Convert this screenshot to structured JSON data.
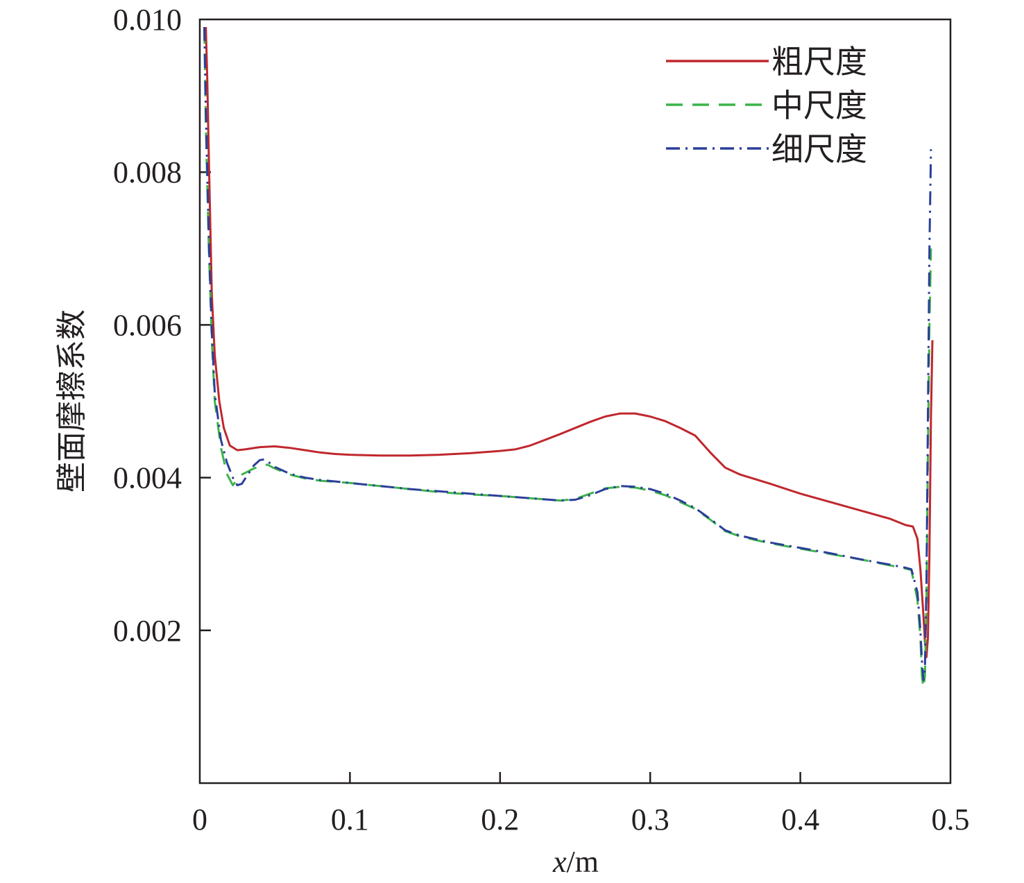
{
  "chart_data": {
    "type": "line",
    "xlabel_var": "x",
    "xlabel_unit": "/m",
    "ylabel": "壁面摩擦系数",
    "xlim": [
      0,
      0.5
    ],
    "ylim": [
      0,
      0.01
    ],
    "xticks": [
      0,
      0.1,
      0.2,
      0.3,
      0.4,
      0.5
    ],
    "xtick_labels": [
      "0",
      "0.1",
      "0.2",
      "0.3",
      "0.4",
      "0.5"
    ],
    "yticks": [
      0.002,
      0.004,
      0.006,
      0.008,
      0.01
    ],
    "ytick_labels": [
      "0.002",
      "0.004",
      "0.006",
      "0.008",
      "0.010"
    ],
    "grid": false,
    "legend_position": "top-right",
    "series": [
      {
        "name": "粗尺度",
        "color": "#c0272d",
        "style": "solid",
        "x": [
          0.004,
          0.005,
          0.006,
          0.008,
          0.01,
          0.013,
          0.016,
          0.02,
          0.025,
          0.03,
          0.04,
          0.05,
          0.06,
          0.07,
          0.08,
          0.09,
          0.1,
          0.12,
          0.14,
          0.16,
          0.18,
          0.2,
          0.21,
          0.22,
          0.24,
          0.26,
          0.27,
          0.28,
          0.29,
          0.3,
          0.31,
          0.32,
          0.33,
          0.34,
          0.35,
          0.36,
          0.38,
          0.4,
          0.42,
          0.44,
          0.46,
          0.47,
          0.475,
          0.478,
          0.48,
          0.482,
          0.483,
          0.484,
          0.485,
          0.486,
          0.487,
          0.488
        ],
        "y": [
          0.0099,
          0.0092,
          0.0082,
          0.0064,
          0.0056,
          0.005,
          0.00465,
          0.00442,
          0.00436,
          0.00437,
          0.0044,
          0.00441,
          0.00439,
          0.00436,
          0.00433,
          0.00431,
          0.0043,
          0.00429,
          0.00429,
          0.0043,
          0.00432,
          0.00435,
          0.00437,
          0.00442,
          0.00457,
          0.00473,
          0.0048,
          0.00484,
          0.00484,
          0.0048,
          0.00474,
          0.00465,
          0.00455,
          0.00433,
          0.00413,
          0.00404,
          0.00392,
          0.00379,
          0.00368,
          0.00357,
          0.00346,
          0.00338,
          0.00336,
          0.0032,
          0.0028,
          0.0022,
          0.00185,
          0.00165,
          0.0019,
          0.003,
          0.0048,
          0.0058
        ]
      },
      {
        "name": "中尺度",
        "color": "#3cb44b",
        "style": "dashed",
        "x": [
          0.003,
          0.004,
          0.006,
          0.008,
          0.01,
          0.014,
          0.018,
          0.022,
          0.025,
          0.028,
          0.032,
          0.036,
          0.04,
          0.045,
          0.05,
          0.06,
          0.07,
          0.08,
          0.1,
          0.12,
          0.14,
          0.16,
          0.18,
          0.2,
          0.22,
          0.24,
          0.25,
          0.26,
          0.27,
          0.28,
          0.29,
          0.3,
          0.31,
          0.32,
          0.33,
          0.34,
          0.35,
          0.36,
          0.38,
          0.4,
          0.42,
          0.44,
          0.46,
          0.47,
          0.474,
          0.478,
          0.48,
          0.481,
          0.482,
          0.483,
          0.484,
          0.485,
          0.486,
          0.487
        ],
        "y": [
          0.0099,
          0.0086,
          0.007,
          0.0058,
          0.005,
          0.0044,
          0.00405,
          0.0039,
          0.00398,
          0.00404,
          0.00408,
          0.00412,
          0.00415,
          0.00417,
          0.00412,
          0.00404,
          0.00399,
          0.00396,
          0.00393,
          0.00389,
          0.00385,
          0.00381,
          0.00378,
          0.00376,
          0.00373,
          0.0037,
          0.00372,
          0.00379,
          0.00386,
          0.00388,
          0.00387,
          0.00383,
          0.00377,
          0.00368,
          0.00359,
          0.00345,
          0.0033,
          0.00323,
          0.00314,
          0.00307,
          0.003,
          0.00293,
          0.00285,
          0.00281,
          0.00279,
          0.0024,
          0.0019,
          0.0014,
          0.00125,
          0.0014,
          0.0024,
          0.0043,
          0.006,
          0.007
        ]
      },
      {
        "name": "细尺度",
        "color": "#2b3f99",
        "style": "dashdot",
        "x": [
          0.003,
          0.004,
          0.006,
          0.008,
          0.01,
          0.014,
          0.018,
          0.022,
          0.025,
          0.028,
          0.032,
          0.036,
          0.04,
          0.043,
          0.046,
          0.05,
          0.06,
          0.07,
          0.08,
          0.1,
          0.12,
          0.14,
          0.16,
          0.18,
          0.2,
          0.22,
          0.24,
          0.25,
          0.26,
          0.27,
          0.28,
          0.29,
          0.3,
          0.31,
          0.32,
          0.33,
          0.34,
          0.35,
          0.36,
          0.38,
          0.4,
          0.42,
          0.44,
          0.46,
          0.47,
          0.474,
          0.478,
          0.48,
          0.481,
          0.482,
          0.483,
          0.484,
          0.485,
          0.486,
          0.487
        ],
        "y": [
          0.0099,
          0.0088,
          0.0071,
          0.0059,
          0.0051,
          0.0045,
          0.0042,
          0.004,
          0.0039,
          0.00392,
          0.00404,
          0.00416,
          0.00423,
          0.00424,
          0.0042,
          0.00414,
          0.00405,
          0.004,
          0.00397,
          0.00393,
          0.00389,
          0.00385,
          0.00382,
          0.00379,
          0.00376,
          0.00373,
          0.0037,
          0.00371,
          0.00377,
          0.00385,
          0.00389,
          0.00388,
          0.00385,
          0.00379,
          0.0037,
          0.0036,
          0.00346,
          0.00331,
          0.00324,
          0.00315,
          0.00308,
          0.00301,
          0.00293,
          0.00286,
          0.00282,
          0.0028,
          0.0025,
          0.002,
          0.0016,
          0.00135,
          0.0015,
          0.0026,
          0.0048,
          0.007,
          0.0083
        ]
      }
    ]
  }
}
